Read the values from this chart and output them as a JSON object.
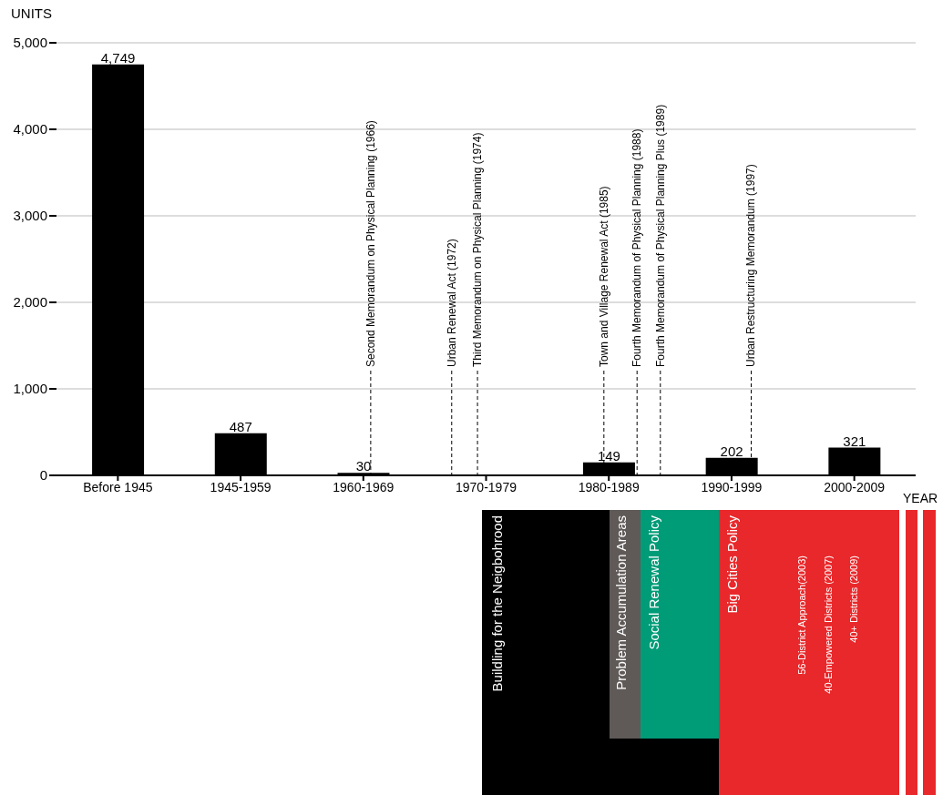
{
  "chart_data": {
    "type": "bar",
    "ylabel": "UNITS",
    "xlabel": "YEAR",
    "categories": [
      "Before 1945",
      "1945-1959",
      "1960-1969",
      "1970-1979",
      "1980-1989",
      "1990-1999",
      "2000-2009"
    ],
    "values": [
      4749,
      487,
      30,
      null,
      149,
      202,
      321
    ],
    "color": "#000000",
    "value_labels": [
      "4,749",
      "487",
      "30",
      null,
      "149",
      "202",
      "321"
    ],
    "ylim": [
      0,
      5000
    ],
    "yticks": [
      {
        "value": 0,
        "label": "0"
      },
      {
        "value": 1000,
        "label": "1,000"
      },
      {
        "value": 2000,
        "label": "2,000"
      },
      {
        "value": 3000,
        "label": "3,000"
      },
      {
        "value": 4000,
        "label": "4,000"
      },
      {
        "value": 5000,
        "label": "5,000"
      }
    ],
    "grid": "y",
    "ref_lines": [
      {
        "axis": "x",
        "value": "1960-1969",
        "label": "Second Memorandum on Physical Planning (1966)",
        "line_style": "dashed"
      },
      {
        "axis": "x",
        "value": "1970-1979",
        "label": "Urban Renewal Act (1972)",
        "line_style": "dashed"
      },
      {
        "axis": "x",
        "value": "1970-1979",
        "label": "Third Memorandum on Physical Planning (1974)",
        "line_style": "dashed"
      },
      {
        "axis": "x",
        "value": "1980-1989",
        "label": "Town and Village Renewal Act (1985)",
        "line_style": "dashed"
      },
      {
        "axis": "x",
        "value": "1980-1989",
        "label": "Fourth Memorandum of Physical Planning (1988)",
        "line_style": "dashed"
      },
      {
        "axis": "x",
        "value": "1980-1989",
        "label": "Fourth Memorandum of Physical Planning Plus (1989)",
        "line_style": "dashed"
      },
      {
        "axis": "x",
        "value": "1990-1999",
        "label": "Urban Restructuring Memorandum (1997)",
        "line_style": "dashed"
      }
    ],
    "annotations": [
      "Buildling for the Neigbohrood",
      "Problem Accumulation Areas",
      "Social Renewal Policy",
      "Big Cities Policy",
      "56-District Approach(2003)",
      "40-Empowered Districts (2007)",
      "40+ Districts (2009)"
    ]
  }
}
